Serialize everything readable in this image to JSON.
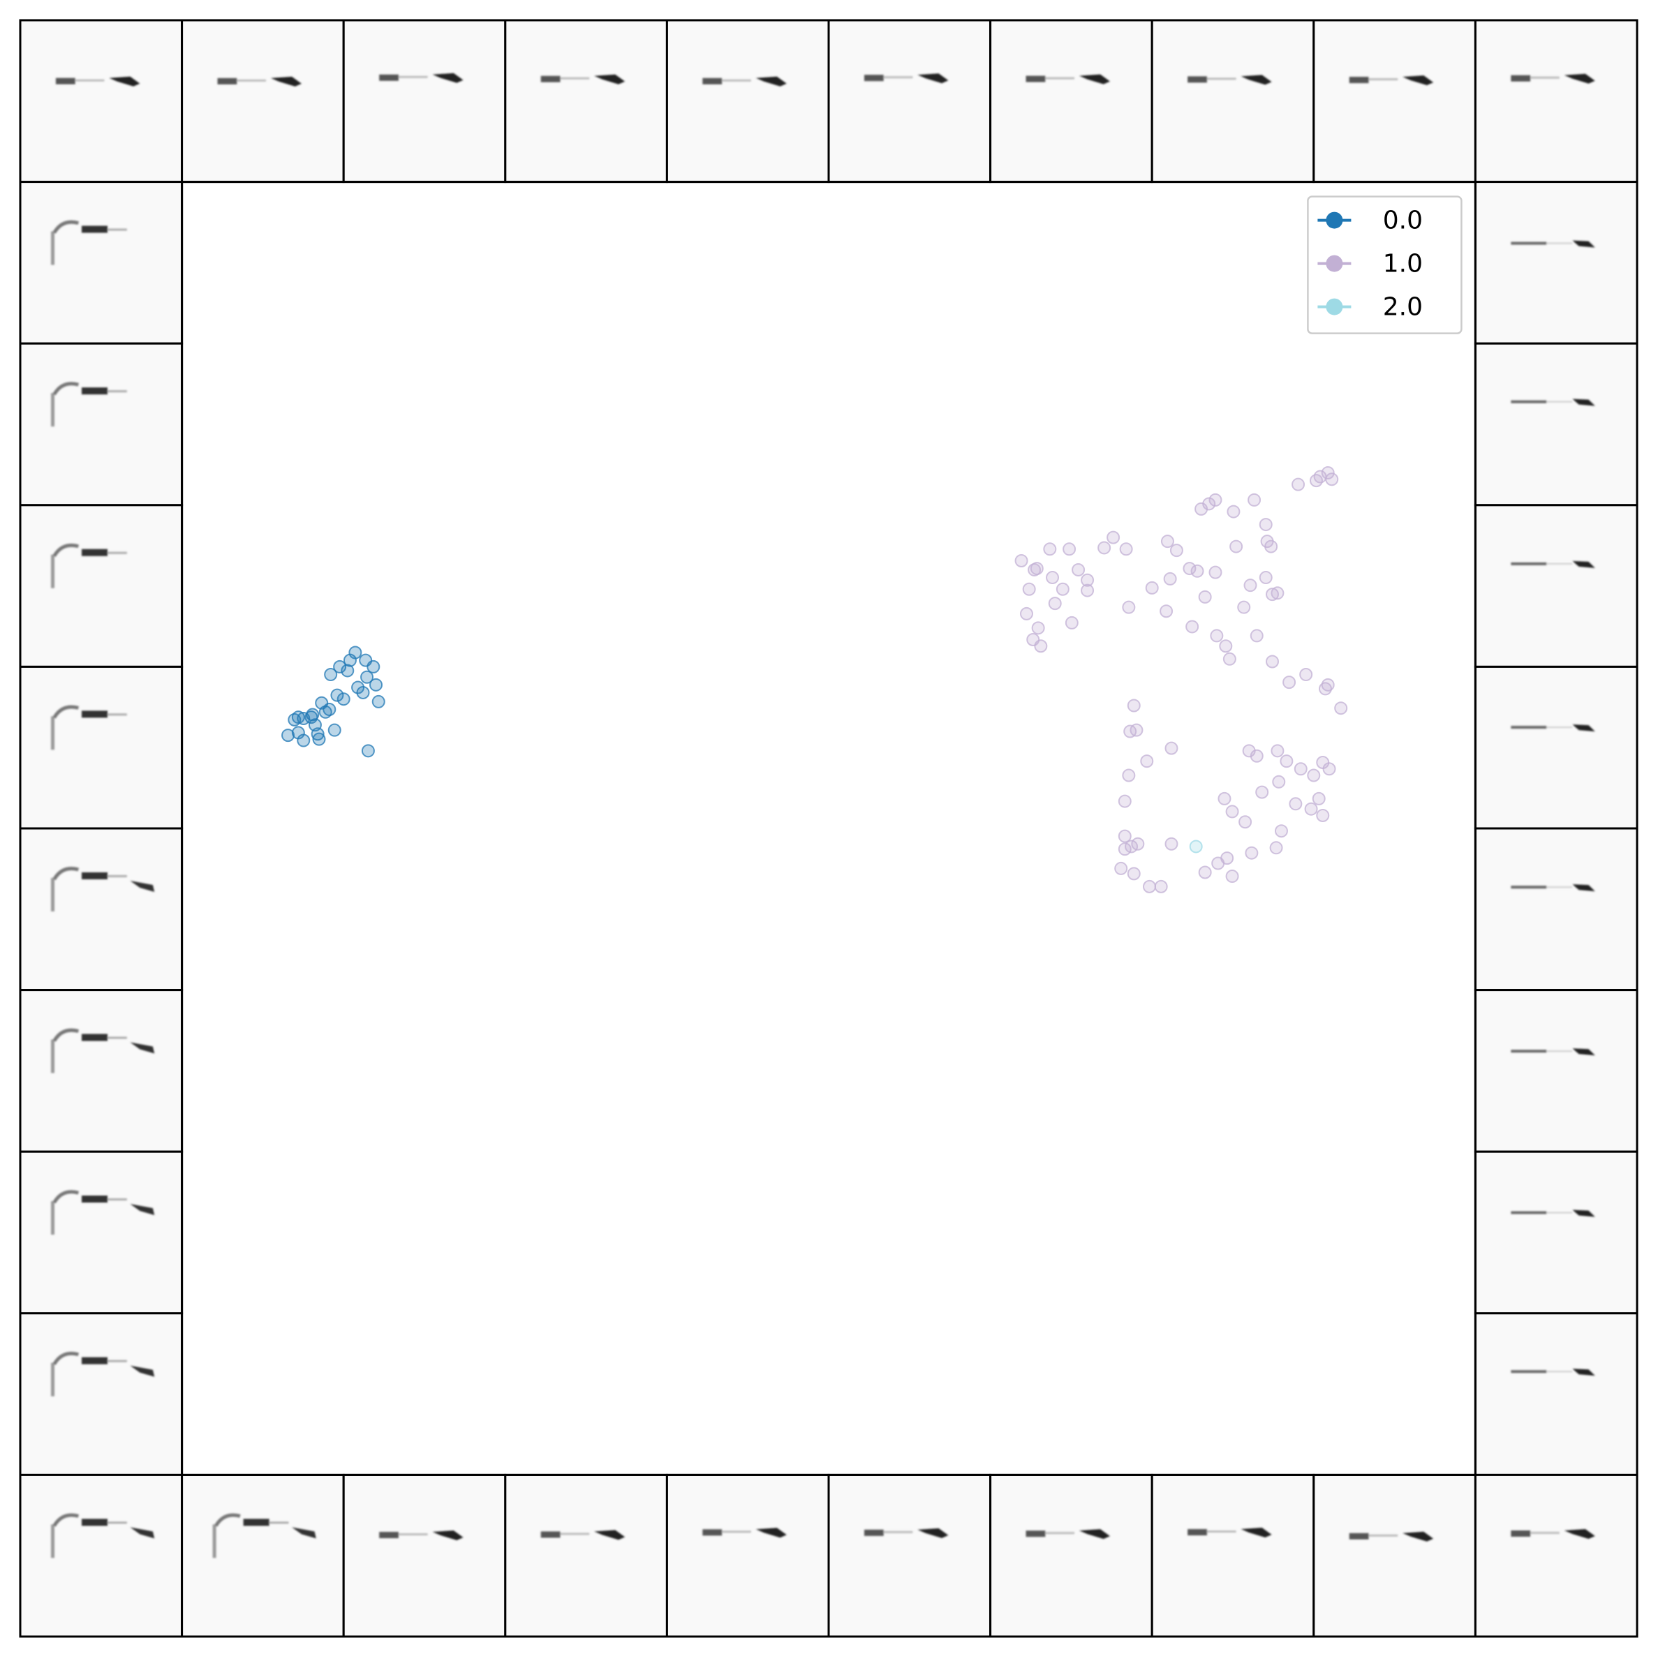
{
  "chart_data": {
    "type": "scatter",
    "title": "",
    "xlabel": "",
    "ylabel": "",
    "grid": false,
    "axes_ticks": false,
    "xlim": [
      0,
      100
    ],
    "ylim": [
      0,
      100
    ],
    "legend": {
      "placement": "top-right"
    },
    "series": [
      {
        "name": "0.0",
        "color": "#1f77b4",
        "marker_opacity": 0.3,
        "points": [
          [
            8.2,
            57.2
          ],
          [
            9.4,
            56.8
          ],
          [
            10.0,
            58.6
          ],
          [
            10.5,
            57.3
          ],
          [
            14.4,
            56.0
          ],
          [
            11.8,
            57.6
          ],
          [
            10.6,
            56.9
          ],
          [
            9.4,
            58.5
          ],
          [
            10.1,
            58.8
          ],
          [
            11.4,
            59.2
          ],
          [
            12.0,
            60.3
          ],
          [
            10.8,
            59.7
          ],
          [
            8.7,
            58.4
          ],
          [
            9.0,
            58.6
          ],
          [
            11.5,
            61.9
          ],
          [
            12.2,
            62.5
          ],
          [
            12.8,
            62.2
          ],
          [
            13.0,
            63.0
          ],
          [
            13.4,
            63.6
          ],
          [
            14.2,
            63.0
          ],
          [
            14.8,
            62.5
          ],
          [
            14.3,
            61.7
          ],
          [
            15.0,
            61.1
          ],
          [
            14.0,
            60.5
          ],
          [
            15.2,
            59.8
          ],
          [
            13.6,
            60.9
          ],
          [
            12.5,
            60.0
          ],
          [
            11.1,
            59.0
          ],
          [
            10.3,
            58.0
          ],
          [
            9.0,
            57.4
          ]
        ]
      },
      {
        "name": "1.0",
        "color": "#c2b0d4",
        "marker_opacity": 0.3,
        "points": [
          [
            88.0,
            77.2
          ],
          [
            88.6,
            77.5
          ],
          [
            88.9,
            77.0
          ],
          [
            87.7,
            76.9
          ],
          [
            86.3,
            76.6
          ],
          [
            78.8,
            74.7
          ],
          [
            79.4,
            75.1
          ],
          [
            79.9,
            75.4
          ],
          [
            81.3,
            74.5
          ],
          [
            82.9,
            75.4
          ],
          [
            76.2,
            72.2
          ],
          [
            76.9,
            71.5
          ],
          [
            81.5,
            71.8
          ],
          [
            83.8,
            73.5
          ],
          [
            83.9,
            72.2
          ],
          [
            84.2,
            71.8
          ],
          [
            79.9,
            69.8
          ],
          [
            77.9,
            70.1
          ],
          [
            83.8,
            69.4
          ],
          [
            84.3,
            68.1
          ],
          [
            82.6,
            68.8
          ],
          [
            72.0,
            72.5
          ],
          [
            71.3,
            71.7
          ],
          [
            64.9,
            70.7
          ],
          [
            65.9,
            70.0
          ],
          [
            67.1,
            71.6
          ],
          [
            68.6,
            71.6
          ],
          [
            69.3,
            70.0
          ],
          [
            70.0,
            69.2
          ],
          [
            70.0,
            68.4
          ],
          [
            73.0,
            71.6
          ],
          [
            75.0,
            68.6
          ],
          [
            76.4,
            69.3
          ],
          [
            73.2,
            67.1
          ],
          [
            76.1,
            66.8
          ],
          [
            78.5,
            69.9
          ],
          [
            79.1,
            67.9
          ],
          [
            84.7,
            68.2
          ],
          [
            82.1,
            67.1
          ],
          [
            66.1,
            70.1
          ],
          [
            65.5,
            68.5
          ],
          [
            68.1,
            68.5
          ],
          [
            67.3,
            69.4
          ],
          [
            65.3,
            66.6
          ],
          [
            66.2,
            65.5
          ],
          [
            67.5,
            67.4
          ],
          [
            68.8,
            65.9
          ],
          [
            65.8,
            64.6
          ],
          [
            66.4,
            64.1
          ],
          [
            78.1,
            65.6
          ],
          [
            80.7,
            64.1
          ],
          [
            81.0,
            63.1
          ],
          [
            80.0,
            64.9
          ],
          [
            83.1,
            64.9
          ],
          [
            84.3,
            62.9
          ],
          [
            85.6,
            61.3
          ],
          [
            86.9,
            61.9
          ],
          [
            88.4,
            60.8
          ],
          [
            88.6,
            61.1
          ],
          [
            89.6,
            59.3
          ],
          [
            73.6,
            59.5
          ],
          [
            73.3,
            57.5
          ],
          [
            73.8,
            57.6
          ],
          [
            76.5,
            56.2
          ],
          [
            74.6,
            55.2
          ],
          [
            73.2,
            54.1
          ],
          [
            82.5,
            56.0
          ],
          [
            83.1,
            55.6
          ],
          [
            84.7,
            56.0
          ],
          [
            85.4,
            55.2
          ],
          [
            86.5,
            54.6
          ],
          [
            87.5,
            54.1
          ],
          [
            88.2,
            55.1
          ],
          [
            88.7,
            54.6
          ],
          [
            84.8,
            53.6
          ],
          [
            83.5,
            52.8
          ],
          [
            86.1,
            51.9
          ],
          [
            87.3,
            51.5
          ],
          [
            87.9,
            52.3
          ],
          [
            88.2,
            51.0
          ],
          [
            72.9,
            52.1
          ],
          [
            72.9,
            49.4
          ],
          [
            72.9,
            48.4
          ],
          [
            73.4,
            48.6
          ],
          [
            73.9,
            48.8
          ],
          [
            76.5,
            48.8
          ],
          [
            72.6,
            46.9
          ],
          [
            73.6,
            46.5
          ],
          [
            74.8,
            45.5
          ],
          [
            75.7,
            45.5
          ],
          [
            79.1,
            46.6
          ],
          [
            80.1,
            47.3
          ],
          [
            81.2,
            46.3
          ],
          [
            80.8,
            47.7
          ],
          [
            82.7,
            48.1
          ],
          [
            84.6,
            48.5
          ],
          [
            85.0,
            49.8
          ],
          [
            82.2,
            50.5
          ],
          [
            81.2,
            51.3
          ],
          [
            80.6,
            52.3
          ]
        ]
      },
      {
        "name": "2.0",
        "color": "#9edae5",
        "marker_opacity": 0.3,
        "points": [
          [
            78.4,
            48.6
          ]
        ]
      }
    ],
    "thumbnail_grid": {
      "rows": 10,
      "cols": 10,
      "content": "border-thumbnails"
    }
  }
}
